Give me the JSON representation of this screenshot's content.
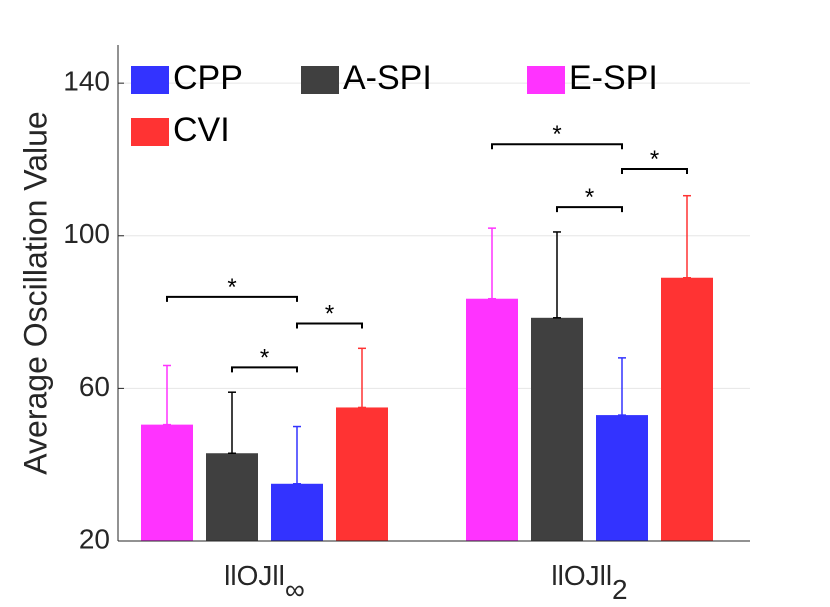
{
  "chart_data": {
    "type": "bar",
    "title": "",
    "xlabel": "",
    "ylabel": "Average Oscillation Value",
    "ylim": [
      20,
      150
    ],
    "yticks": [
      20,
      60,
      100,
      140
    ],
    "grid": true,
    "legend_position": "top",
    "categories": [
      {
        "main": "llOJll",
        "sub": "∞"
      },
      {
        "main": "llOJll",
        "sub": "2"
      }
    ],
    "series": [
      {
        "name": "E-SPI",
        "color": "#ff33ff",
        "values": [
          50.5,
          83.5
        ],
        "errors": [
          15.5,
          18.5
        ]
      },
      {
        "name": "A-SPI",
        "color": "#404040",
        "values": [
          43,
          78.5
        ],
        "errors": [
          16,
          22.5
        ]
      },
      {
        "name": "CPP",
        "color": "#3333ff",
        "values": [
          35,
          53
        ],
        "errors": [
          15,
          15
        ]
      },
      {
        "name": "CVI",
        "color": "#ff3333",
        "values": [
          55,
          89
        ],
        "errors": [
          15.5,
          21.5
        ]
      }
    ],
    "legend_order": [
      "CPP",
      "A-SPI",
      "E-SPI",
      "CVI"
    ],
    "significance": [
      {
        "group": 0,
        "from": 0,
        "to": 2,
        "y": 84,
        "label": "*"
      },
      {
        "group": 0,
        "from": 1,
        "to": 2,
        "y": 65.5,
        "label": "*"
      },
      {
        "group": 0,
        "from": 2,
        "to": 3,
        "y": 77,
        "label": "*"
      },
      {
        "group": 1,
        "from": 0,
        "to": 2,
        "y": 124,
        "label": "*"
      },
      {
        "group": 1,
        "from": 1,
        "to": 2,
        "y": 107.5,
        "label": "*"
      },
      {
        "group": 1,
        "from": 2,
        "to": 3,
        "y": 117.5,
        "label": "*"
      }
    ]
  }
}
